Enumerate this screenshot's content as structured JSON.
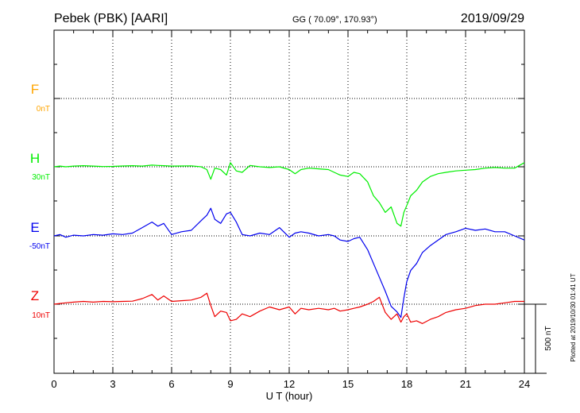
{
  "chart_data": {
    "type": "line",
    "title": "Pebek (PBK)  [AARI]",
    "subtitle": "GG ( 70.09°, 170.93°)",
    "date": "2019/09/29",
    "xlabel": "U T (hour)",
    "xlim": [
      0,
      24
    ],
    "xticks": [
      "0",
      "3",
      "6",
      "9",
      "12",
      "15",
      "18",
      "21",
      "24"
    ],
    "grid": true,
    "scale_bar_label": "500 nT",
    "scale_bar_nT": 500,
    "footnote": "Plotted at 2019/10/30 01:41 UT",
    "series": [
      {
        "name": "F",
        "baseline_label": "0nT",
        "color": "#ffa500",
        "x": [],
        "y": []
      },
      {
        "name": "H",
        "baseline_label": "30nT",
        "color": "#00ee00",
        "x": [
          0,
          0.3,
          0.6,
          1.0,
          1.5,
          2,
          2.5,
          3,
          3.5,
          4,
          4.5,
          5,
          5.3,
          5.6,
          6,
          6.5,
          7,
          7.5,
          7.8,
          8.0,
          8.2,
          8.5,
          8.8,
          9.0,
          9.3,
          9.6,
          10.0,
          10.5,
          11,
          11.5,
          12,
          12.3,
          12.6,
          13,
          13.5,
          14,
          14.3,
          14.6,
          15,
          15.3,
          15.6,
          16.0,
          16.3,
          16.6,
          16.9,
          17.2,
          17.5,
          17.7,
          17.85,
          18.0,
          18.2,
          18.5,
          18.8,
          19.2,
          19.6,
          20,
          20.5,
          21,
          21.5,
          22,
          22.5,
          23,
          23.5,
          24
        ],
        "y": [
          30,
          35,
          30,
          35,
          38,
          35,
          32,
          33,
          36,
          38,
          35,
          42,
          40,
          38,
          35,
          36,
          37,
          30,
          10,
          -60,
          20,
          10,
          -30,
          60,
          0,
          -10,
          40,
          30,
          25,
          30,
          10,
          -20,
          10,
          20,
          15,
          10,
          -10,
          -30,
          -40,
          -10,
          -20,
          -80,
          -180,
          -230,
          -300,
          -260,
          -380,
          -400,
          -300,
          -250,
          -180,
          -140,
          -80,
          -40,
          -20,
          -10,
          0,
          5,
          10,
          20,
          25,
          20,
          20,
          60
        ]
      },
      {
        "name": "E",
        "baseline_label": "-50nT",
        "color": "#0000ee",
        "x": [
          0,
          0.3,
          0.6,
          1.0,
          1.5,
          2,
          2.5,
          3,
          3.5,
          4,
          4.5,
          5,
          5.3,
          5.6,
          6,
          6.5,
          7,
          7.5,
          7.8,
          8.0,
          8.2,
          8.5,
          8.8,
          9.0,
          9.3,
          9.6,
          10.0,
          10.5,
          11,
          11.5,
          12,
          12.3,
          12.6,
          13,
          13.5,
          14,
          14.3,
          14.6,
          15,
          15.3,
          15.6,
          16.0,
          16.3,
          16.6,
          16.9,
          17.2,
          17.5,
          17.7,
          17.85,
          18.0,
          18.2,
          18.5,
          18.8,
          19.2,
          19.6,
          20,
          20.5,
          21,
          21.5,
          22,
          22.5,
          23,
          23.5,
          24
        ],
        "y": [
          -50,
          -40,
          -60,
          -45,
          -50,
          -40,
          -45,
          -35,
          -40,
          -30,
          10,
          50,
          20,
          40,
          -40,
          -20,
          -10,
          60,
          100,
          150,
          70,
          40,
          110,
          120,
          50,
          -40,
          -50,
          -30,
          -40,
          10,
          -60,
          -30,
          -20,
          -30,
          -50,
          -40,
          -50,
          -80,
          -90,
          -70,
          -60,
          -150,
          -250,
          -350,
          -450,
          -560,
          -600,
          -640,
          -500,
          -380,
          -300,
          -250,
          -170,
          -120,
          -80,
          -40,
          -20,
          5,
          -10,
          0,
          -20,
          -20,
          -50,
          -80
        ]
      },
      {
        "name": "Z",
        "baseline_label": "10nT",
        "color": "#ee0000",
        "x": [
          0,
          0.3,
          0.6,
          1.0,
          1.5,
          2,
          2.5,
          3,
          3.5,
          4,
          4.5,
          5,
          5.3,
          5.6,
          6,
          6.5,
          7,
          7.5,
          7.8,
          8.0,
          8.2,
          8.5,
          8.8,
          9.0,
          9.3,
          9.6,
          10.0,
          10.5,
          11,
          11.5,
          12,
          12.3,
          12.6,
          13,
          13.5,
          14,
          14.3,
          14.6,
          15,
          15.3,
          15.6,
          16.0,
          16.3,
          16.6,
          16.9,
          17.2,
          17.5,
          17.7,
          17.85,
          18.0,
          18.2,
          18.5,
          18.8,
          19.2,
          19.6,
          20,
          20.5,
          21,
          21.5,
          22,
          22.5,
          23,
          23.5,
          24
        ],
        "y": [
          10,
          15,
          20,
          25,
          30,
          25,
          30,
          28,
          30,
          32,
          50,
          80,
          40,
          70,
          30,
          35,
          40,
          60,
          90,
          0,
          -80,
          -40,
          -50,
          -110,
          -100,
          -60,
          -80,
          -40,
          -10,
          -30,
          -10,
          -60,
          -20,
          -30,
          -20,
          -30,
          -20,
          -40,
          -30,
          -20,
          -10,
          10,
          30,
          60,
          -50,
          -100,
          -60,
          -120,
          -80,
          -60,
          -120,
          -110,
          -130,
          -100,
          -80,
          -50,
          -30,
          -20,
          0,
          10,
          10,
          20,
          30,
          30
        ]
      }
    ]
  }
}
